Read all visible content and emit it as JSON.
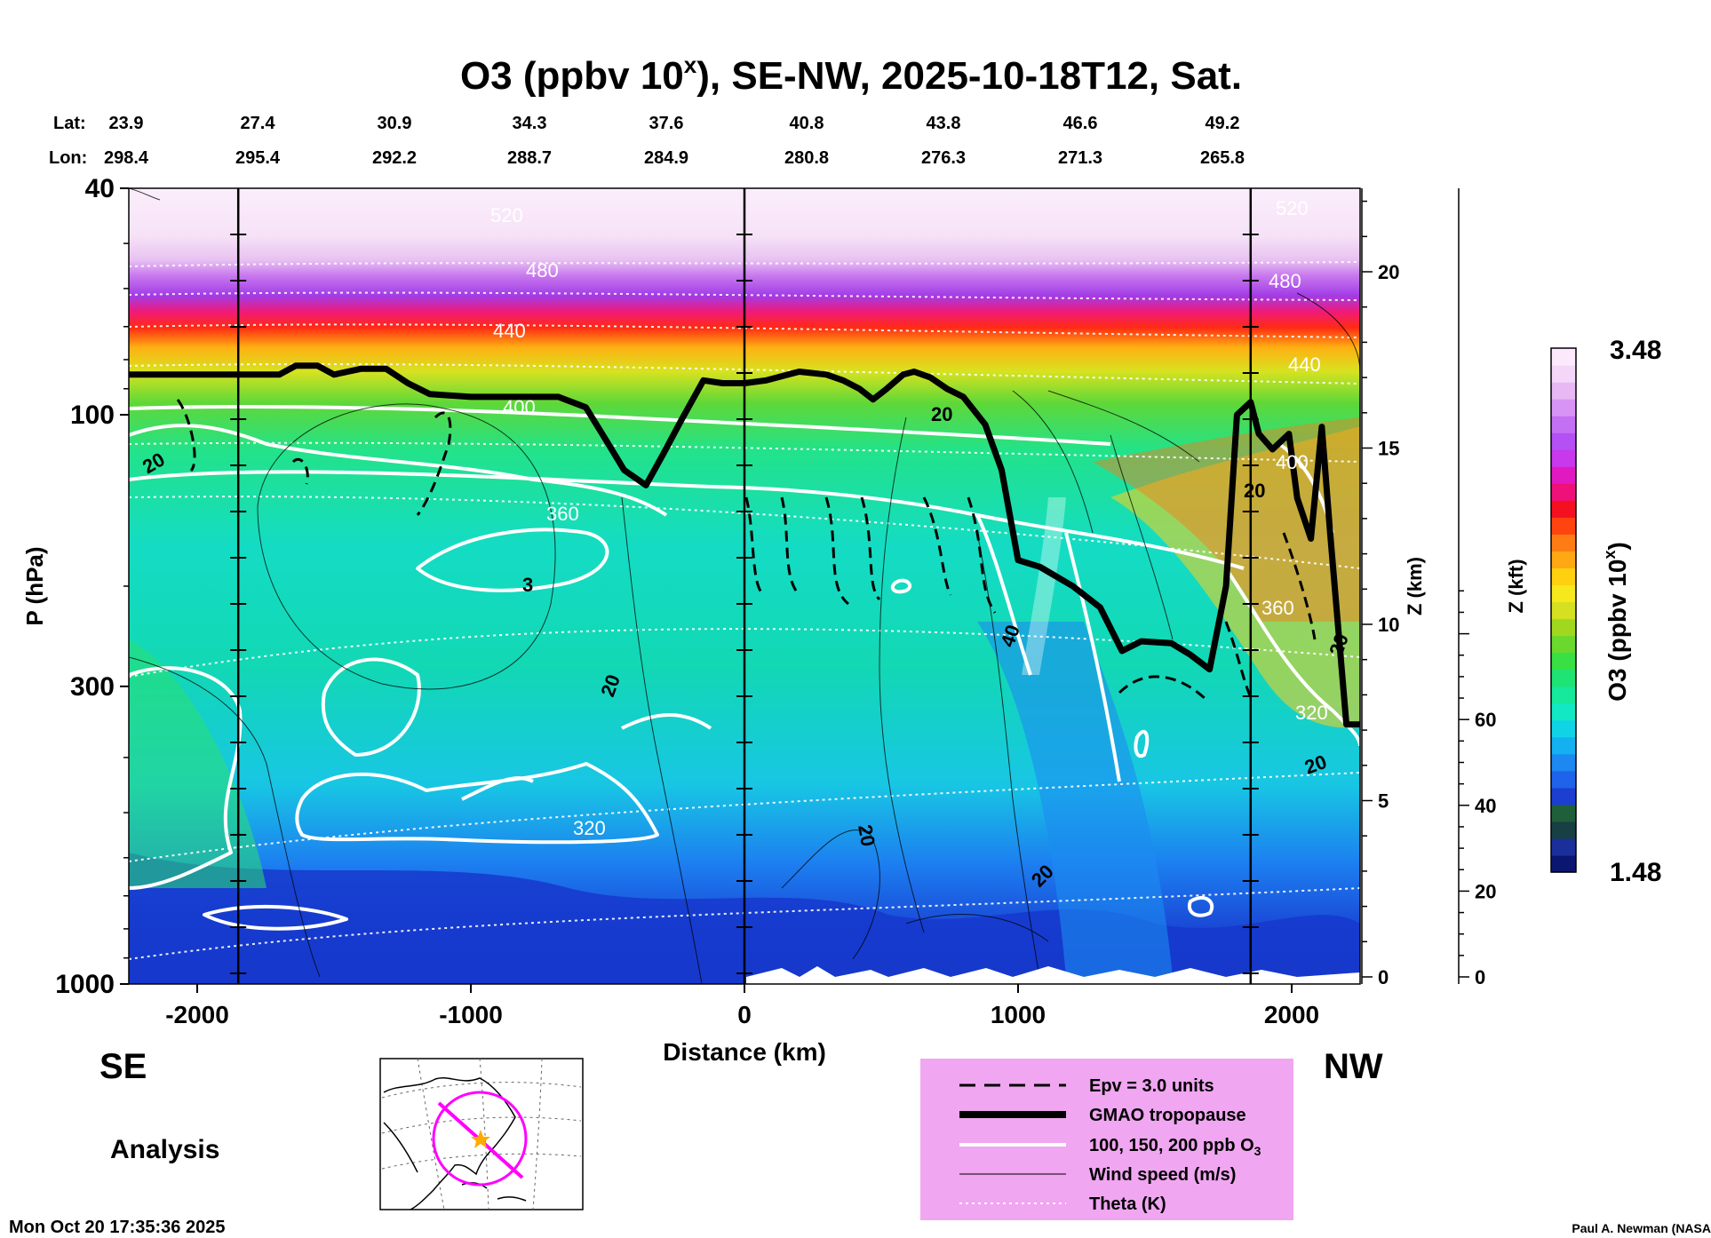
{
  "chart_data": {
    "type": "heatmap",
    "title_main": "O3 (ppbv 10",
    "title_sup": "x",
    "title_rest": "), SE-NW, 2025-10-18T12, Sat.",
    "lat_label": "Lat:",
    "lon_label": "Lon:",
    "lat": [
      "23.9",
      "27.4",
      "30.9",
      "34.3",
      "37.6",
      "40.8",
      "43.8",
      "46.6",
      "49.2"
    ],
    "lon": [
      "298.4",
      "295.4",
      "292.2",
      "288.7",
      "284.9",
      "280.8",
      "276.3",
      "271.3",
      "265.8"
    ],
    "xlabel": "Distance (km)",
    "xlim": [
      -2250,
      2250
    ],
    "xticks": [
      "-2000",
      "-1000",
      "0",
      "1000",
      "2000"
    ],
    "xtick_values": [
      -2000,
      -1000,
      0,
      1000,
      2000
    ],
    "ylabel": "P (hPa)",
    "ylim": [
      1000,
      40
    ],
    "yscale": "log",
    "yticks": [
      "40",
      "100",
      "300",
      "1000"
    ],
    "ytick_values": [
      40,
      100,
      300,
      1000
    ],
    "z_km_label": "Z (km)",
    "z_km_ticks": [
      "0",
      "5",
      "10",
      "15",
      "20"
    ],
    "z_kft_label": "Z (kft)",
    "z_kft_ticks": [
      "0",
      "20",
      "40",
      "60"
    ],
    "colorbar": {
      "label_main": "O3 (ppbv 10",
      "label_sup": "x",
      "label_end": ")",
      "max": "3.48",
      "min": "1.48",
      "colors": [
        "#0a1670",
        "#1a2f9a",
        "#183f44",
        "#1f5f3a",
        "#1c3fd0",
        "#1e63ea",
        "#1c88f0",
        "#14b0f0",
        "#10d4e6",
        "#12e8c4",
        "#16e89c",
        "#1ee474",
        "#38e044",
        "#6ad82c",
        "#a0d820",
        "#d4e020",
        "#f6e81c",
        "#ffd010",
        "#ffa814",
        "#ff7c14",
        "#ff4410",
        "#f41020",
        "#f0107a",
        "#e01ac0",
        "#c838ec",
        "#b450f4",
        "#c470f4",
        "#d894f4",
        "#e8b8f4",
        "#f4d6f8",
        "#fceafc"
      ]
    },
    "theta_labels": [
      "520",
      "480",
      "440",
      "400",
      "360",
      "320",
      "520",
      "480",
      "440",
      "400",
      "360",
      "320"
    ],
    "wind_labels": [
      "20",
      "3",
      "20",
      "20",
      "20",
      "40",
      "20",
      "20",
      "20",
      "20"
    ],
    "section_lines_km": [
      -1850,
      0,
      1850
    ],
    "tropopause": [
      [
        -2250,
        85
      ],
      [
        -1700,
        85
      ],
      [
        -1640,
        82
      ],
      [
        -1560,
        82
      ],
      [
        -1500,
        85
      ],
      [
        -1400,
        83
      ],
      [
        -1310,
        83
      ],
      [
        -1230,
        88
      ],
      [
        -1150,
        92
      ],
      [
        -1000,
        93
      ],
      [
        -900,
        93
      ],
      [
        -800,
        93
      ],
      [
        -680,
        93
      ],
      [
        -580,
        97
      ],
      [
        -500,
        112
      ],
      [
        -440,
        125
      ],
      [
        -360,
        133
      ],
      [
        -300,
        118
      ],
      [
        -230,
        102
      ],
      [
        -150,
        87
      ],
      [
        -80,
        88
      ],
      [
        0,
        88
      ],
      [
        80,
        87
      ],
      [
        200,
        84
      ],
      [
        300,
        85
      ],
      [
        360,
        87
      ],
      [
        420,
        90
      ],
      [
        470,
        94
      ],
      [
        520,
        90
      ],
      [
        580,
        85
      ],
      [
        620,
        84
      ],
      [
        680,
        86
      ],
      [
        740,
        90
      ],
      [
        800,
        93
      ],
      [
        880,
        104
      ],
      [
        940,
        125
      ],
      [
        1000,
        180
      ],
      [
        1080,
        185
      ],
      [
        1200,
        200
      ],
      [
        1300,
        218
      ],
      [
        1380,
        260
      ],
      [
        1450,
        250
      ],
      [
        1560,
        252
      ],
      [
        1630,
        264
      ],
      [
        1700,
        280
      ],
      [
        1760,
        200
      ],
      [
        1800,
        100
      ],
      [
        1850,
        95
      ],
      [
        1880,
        108
      ],
      [
        1930,
        115
      ],
      [
        1990,
        108
      ],
      [
        2020,
        140
      ],
      [
        2070,
        165
      ],
      [
        2110,
        105
      ],
      [
        2140,
        160
      ],
      [
        2200,
        350
      ],
      [
        2250,
        350
      ]
    ]
  },
  "labels": {
    "direction_left": "SE",
    "direction_right": "NW",
    "analysis": "Analysis",
    "timestamp": "Mon Oct 20 17:35:36 2025",
    "credit": "Paul A. Newman (NASA"
  },
  "legend": {
    "items": [
      "Epv = 3.0 units",
      "GMAO tropopause",
      "100, 150, 200 ppb O",
      "Wind speed (m/s)",
      "Theta (K)"
    ],
    "o3_sub": "3",
    "background": "#f0a6f0"
  },
  "colors": {
    "theta_line": "#ffffff",
    "o3_contour": "#ffffff",
    "tropopause": "#000000",
    "map_line": "#ff00ff",
    "map_marker": "#ffaa00"
  },
  "map": {
    "marker_icon": "star-icon"
  }
}
